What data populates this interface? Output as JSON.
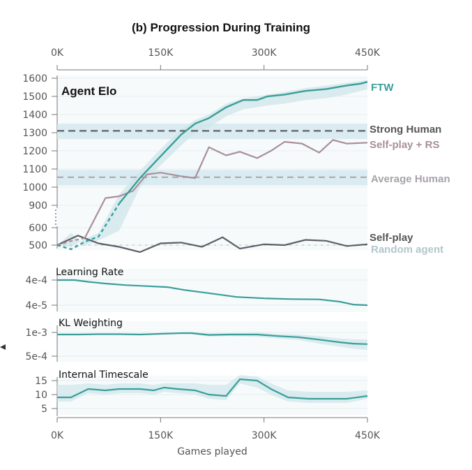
{
  "figure_title": "(b) Progression During Training",
  "x_axis": {
    "label": "Games played",
    "ticks": [
      "0K",
      "150K",
      "300K",
      "450K"
    ],
    "tick_values": [
      0,
      150000,
      300000,
      450000
    ],
    "range": [
      0,
      450000
    ]
  },
  "colors": {
    "ftw": "#3a9e98",
    "ftw_band": "#cfe6ea",
    "human_band": "#d5e9ee",
    "rs": "#a98f9b",
    "selfplay": "#5e5e66",
    "random": "#b3c6cc",
    "strong_human": "#5e5e66",
    "average_human": "#a8a3aa"
  },
  "chart_data": [
    {
      "type": "line",
      "panel": "Agent Elo",
      "ylim": [
        480,
        1620
      ],
      "ytick_labels": [
        "1600",
        "1500",
        "1400",
        "1300",
        "1200",
        "1100",
        "1000",
        "900",
        "600",
        "500"
      ],
      "ytick_values": [
        1600,
        1500,
        1400,
        1300,
        1200,
        1100,
        1000,
        900,
        600,
        500
      ],
      "axis_break": true,
      "series": [
        {
          "name": "FTW",
          "x": [
            0,
            20000,
            40000,
            60000,
            90000,
            120000,
            150000,
            180000,
            200000,
            220000,
            245000,
            270000,
            290000,
            305000,
            330000,
            360000,
            390000,
            420000,
            440000,
            450000
          ],
          "y": [
            500,
            610,
            710,
            780,
            910,
            1050,
            1170,
            1290,
            1350,
            1380,
            1440,
            1480,
            1480,
            1500,
            1510,
            1530,
            1540,
            1560,
            1570,
            1580
          ],
          "band_low": [
            500,
            570,
            660,
            730,
            860,
            1000,
            1120,
            1230,
            1300,
            1330,
            1390,
            1430,
            1440,
            1450,
            1460,
            1480,
            1490,
            1510,
            1530,
            1540
          ],
          "band_high": [
            500,
            640,
            750,
            830,
            960,
            1090,
            1210,
            1320,
            1370,
            1400,
            1460,
            1490,
            1500,
            1510,
            1525,
            1545,
            1560,
            1575,
            1585,
            1590
          ]
        },
        {
          "name": "Self-play + RS",
          "x": [
            0,
            20000,
            40000,
            70000,
            90000,
            110000,
            130000,
            150000,
            180000,
            200000,
            220000,
            245000,
            265000,
            290000,
            310000,
            330000,
            355000,
            380000,
            400000,
            420000,
            450000
          ],
          "y": [
            500,
            720,
            760,
            940,
            950,
            980,
            1070,
            1080,
            1060,
            1050,
            1220,
            1175,
            1195,
            1160,
            1200,
            1250,
            1240,
            1190,
            1260,
            1240,
            1245
          ]
        },
        {
          "name": "Self-play",
          "x": [
            0,
            30000,
            60000,
            90000,
            120000,
            150000,
            180000,
            210000,
            240000,
            265000,
            300000,
            330000,
            360000,
            390000,
            420000,
            450000
          ],
          "y": [
            500,
            555,
            510,
            490,
            460,
            510,
            515,
            490,
            545,
            480,
            505,
            500,
            530,
            525,
            495,
            505
          ]
        },
        {
          "name": "Random agent",
          "x": [
            0,
            450000
          ],
          "y": [
            500,
            500
          ]
        },
        {
          "name": "Strong Human",
          "x": [
            0,
            450000
          ],
          "y": [
            1310,
            1310
          ],
          "band": [
            1265,
            1350
          ]
        },
        {
          "name": "Average Human",
          "x": [
            0,
            450000
          ],
          "y": [
            1055,
            1055
          ],
          "band": [
            1010,
            1095
          ]
        }
      ]
    },
    {
      "type": "line",
      "panel": "Learning Rate",
      "ytick_labels": [
        "4e-4",
        "4e-5"
      ],
      "x": [
        0,
        25000,
        45000,
        70000,
        100000,
        130000,
        160000,
        185000,
        220000,
        260000,
        300000,
        340000,
        380000,
        410000,
        430000,
        450000
      ],
      "y": [
        0.0004,
        0.0004,
        0.00034,
        0.00029,
        0.00025,
        0.00023,
        0.00021,
        0.00016,
        0.00012,
        8.5e-05,
        7.5e-05,
        7e-05,
        6.8e-05,
        5.5e-05,
        4.2e-05,
        4e-05
      ]
    },
    {
      "type": "line",
      "panel": "KL Weighting",
      "ytick_labels": [
        "1e-3",
        "5e-4"
      ],
      "x": [
        0,
        30000,
        60000,
        90000,
        120000,
        150000,
        180000,
        195000,
        220000,
        250000,
        290000,
        320000,
        350000,
        380000,
        410000,
        430000,
        450000
      ],
      "y": [
        0.00094,
        0.00094,
        0.00095,
        0.00095,
        0.00094,
        0.00096,
        0.00098,
        0.00098,
        0.00093,
        0.00094,
        0.00094,
        0.0009,
        0.00087,
        0.00081,
        0.00075,
        0.00072,
        0.00071
      ],
      "band_low": [
        0.00094,
        0.00094,
        0.00094,
        0.00094,
        0.00093,
        0.00094,
        0.00095,
        0.00094,
        0.00089,
        0.0009,
        0.00088,
        0.00084,
        0.0008,
        0.00072,
        0.00066,
        0.00062,
        0.0006
      ],
      "band_high": [
        0.00094,
        0.00094,
        0.00096,
        0.00096,
        0.00096,
        0.00098,
        0.001,
        0.00101,
        0.00097,
        0.00098,
        0.00099,
        0.00096,
        0.00094,
        0.0009,
        0.00084,
        0.00082,
        0.00081
      ]
    },
    {
      "type": "line",
      "panel": "Internal Timescale",
      "ytick_labels": [
        "15",
        "10",
        "5"
      ],
      "ytick_values": [
        15,
        10,
        5
      ],
      "ylim": [
        3,
        18
      ],
      "x": [
        0,
        20000,
        45000,
        70000,
        90000,
        120000,
        140000,
        155000,
        175000,
        200000,
        220000,
        245000,
        265000,
        290000,
        310000,
        335000,
        365000,
        390000,
        420000,
        450000
      ],
      "y": [
        9,
        9,
        12,
        11.5,
        12,
        12,
        11.5,
        12.5,
        12,
        11.5,
        10,
        9.5,
        15.5,
        15,
        12,
        9,
        8.5,
        8.5,
        8.5,
        9.5
      ],
      "band_low": [
        7.5,
        7.5,
        10.5,
        10,
        10.5,
        10.5,
        10,
        11,
        10.5,
        10,
        8.5,
        8,
        14,
        12.5,
        10,
        7.5,
        7,
        7,
        7,
        8.5
      ],
      "band_high": [
        13.5,
        13.5,
        14,
        13.5,
        14,
        14,
        13.5,
        14,
        14,
        14,
        13.5,
        13.5,
        17,
        16.5,
        14,
        11.5,
        11,
        11,
        11,
        11.5
      ]
    }
  ]
}
